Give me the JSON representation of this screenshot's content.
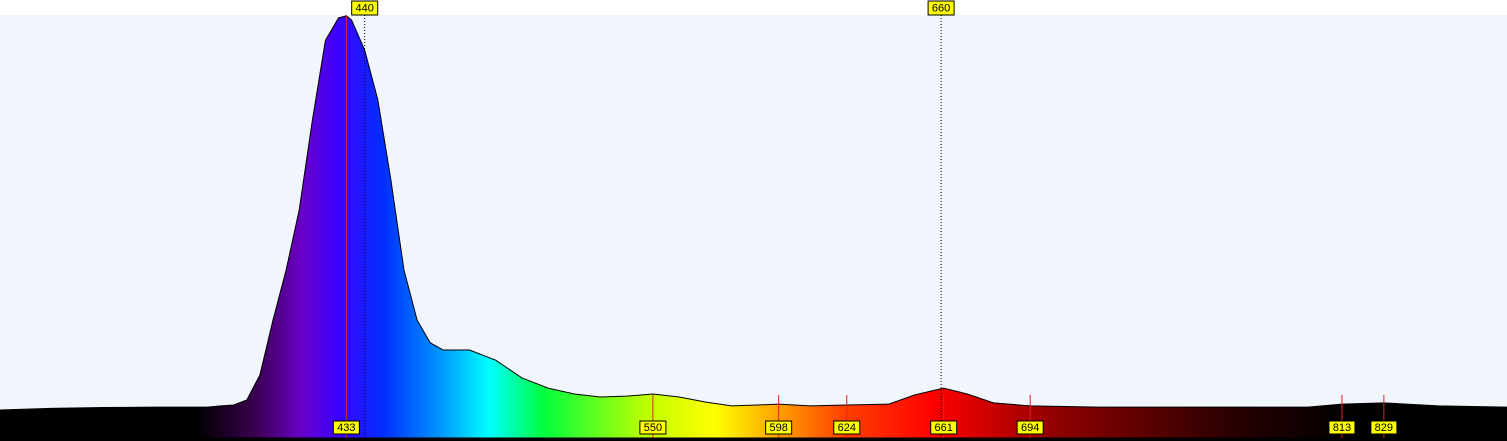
{
  "chart_data": {
    "type": "area",
    "x": [
      300,
      320,
      340,
      360,
      380,
      385,
      390,
      395,
      400,
      405,
      410,
      415,
      420,
      425,
      430,
      433,
      435,
      440,
      445,
      450,
      455,
      460,
      465,
      470,
      480,
      490,
      500,
      510,
      520,
      530,
      540,
      550,
      560,
      570,
      580,
      590,
      598,
      610,
      624,
      640,
      650,
      661,
      670,
      680,
      694,
      720,
      760,
      800,
      813,
      829,
      850,
      876
    ],
    "values": [
      6.6,
      7.0,
      7.2,
      7.3,
      7.3,
      7.6,
      7.8,
      9.0,
      14.9,
      27.9,
      39.7,
      53.9,
      75.0,
      94.0,
      99.3,
      99.8,
      98.8,
      91.7,
      80.0,
      61.0,
      39.7,
      27.9,
      22.5,
      20.8,
      20.8,
      18.4,
      14.2,
      11.8,
      10.4,
      9.7,
      9.9,
      10.4,
      9.7,
      8.5,
      7.6,
      7.8,
      8.0,
      7.6,
      7.8,
      8.0,
      10.2,
      11.8,
      10.4,
      8.3,
      7.6,
      7.3,
      7.3,
      7.3,
      8.0,
      8.3,
      7.6,
      7.3
    ],
    "xlim": [
      300.8,
      876
    ],
    "xticks": [
      {
        "value": 300,
        "label": "0"
      },
      350,
      400,
      450,
      500,
      550,
      600,
      650,
      700,
      750,
      800,
      850
    ],
    "ylim": [
      0,
      100
    ],
    "yticks": [
      0,
      5,
      10,
      15,
      20,
      25,
      30,
      35,
      40,
      45,
      50,
      55,
      60,
      65,
      70,
      75,
      80,
      85,
      90,
      95,
      100
    ],
    "ymajor": [
      50
    ],
    "grid": true,
    "peaks": [
      433,
      550,
      598,
      624,
      661,
      694,
      813,
      829
    ],
    "cursors": [
      440,
      660
    ]
  }
}
